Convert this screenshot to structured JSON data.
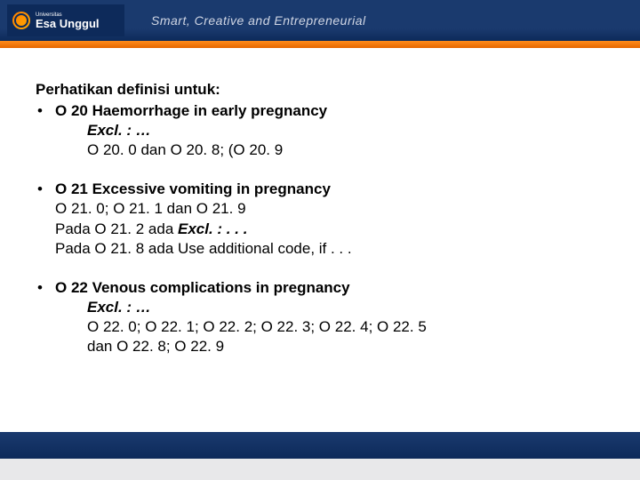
{
  "header": {
    "logo_small": "Universitas",
    "logo_main": "Esa Unggul",
    "tagline": "Smart, Creative and Entrepreneurial",
    "bg_color": "#1a3a6e",
    "orange_bar": "#ff8c1a"
  },
  "content": {
    "heading": "Perhatikan definisi untuk:",
    "sections": [
      {
        "title": "O 20  Haemorrhage in early pregnancy",
        "lines": [
          {
            "text": "Excl. : …",
            "italic": true,
            "bold": true
          },
          {
            "text": "O 20. 0  dan  O 20. 8;  (O 20. 9"
          }
        ]
      },
      {
        "title": "O 21  Excessive vomiting in pregnancy",
        "lines": [
          {
            "text": "O 21. 0;  O 21. 1  dan  O 21. 9"
          },
          {
            "prefix": "Pada  O 21. 2  ada  ",
            "emph": "Excl. : . . .",
            "emph_bold": true,
            "emph_italic": true
          },
          {
            "prefix": "Pada O 21. 8   ada  Use additional code, if . . ."
          }
        ]
      },
      {
        "title": "O 22 Venous complications in pregnancy",
        "lines": [
          {
            "text": "Excl. : …",
            "italic": true,
            "bold": true
          },
          {
            "text": "O 22. 0;  O 22. 1;  O 22. 2;  O 22. 3;  O 22. 4;  O 22. 5"
          },
          {
            "text": "dan  O 22. 8;  O 22. 9"
          }
        ]
      }
    ]
  },
  "bullet_char": "•",
  "colors": {
    "text": "#000000",
    "background": "#ffffff",
    "footer_grey": "#e8e8ea"
  }
}
